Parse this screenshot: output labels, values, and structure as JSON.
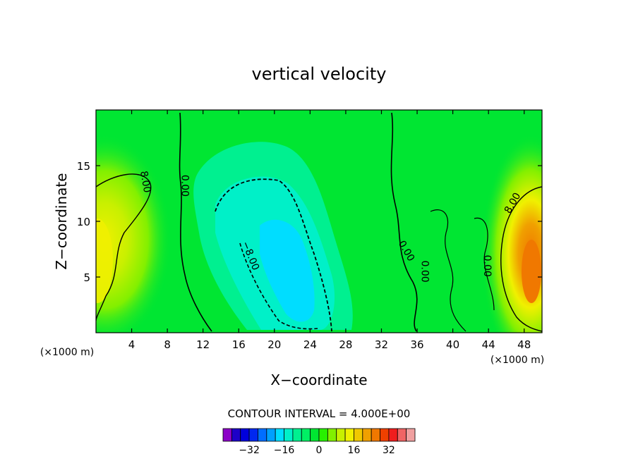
{
  "chart_data": {
    "type": "heatmap",
    "title": "vertical velocity",
    "xlabel": "X−coordinate",
    "ylabel": "Z−coordinate",
    "x_unit_left": "(×1000 m)",
    "x_unit_right": "(×1000 m)",
    "xlim": [
      0,
      50
    ],
    "ylim": [
      0,
      20
    ],
    "x_ticks": [
      4,
      8,
      12,
      16,
      20,
      24,
      28,
      32,
      36,
      40,
      44,
      48
    ],
    "x_tick_labels": [
      "4",
      "8",
      "12",
      "16",
      "20",
      "24",
      "28",
      "32",
      "36",
      "40",
      "44",
      "48"
    ],
    "y_ticks": [
      5,
      10,
      15
    ],
    "y_tick_labels": [
      "5",
      "10",
      "15"
    ],
    "contour_labels": [
      {
        "text": "8.00",
        "x": 5.2,
        "z": 13.5,
        "angle": 80
      },
      {
        "text": "0.00",
        "x": 9.6,
        "z": 13.2,
        "angle": 90
      },
      {
        "text": "−8.00",
        "x": 17.0,
        "z": 6.8,
        "angle": 68
      },
      {
        "text": "0.00",
        "x": 34.5,
        "z": 7.2,
        "angle": 60
      },
      {
        "text": "0.00",
        "x": 36.5,
        "z": 5.5,
        "angle": 90
      },
      {
        "text": "0.00",
        "x": 43.5,
        "z": 6.0,
        "angle": 90
      },
      {
        "text": "8.00",
        "x": 47.0,
        "z": 11.5,
        "angle": -60
      }
    ],
    "contour_interval_label": "CONTOUR INTERVAL = 4.000E+00",
    "colorbar": {
      "levels": [
        -40,
        -36,
        -32,
        -28,
        -24,
        -20,
        -16,
        -12,
        -8,
        -4,
        0,
        4,
        8,
        12,
        16,
        20,
        24,
        28,
        32,
        36,
        40
      ],
      "colors": [
        "#8c00c8",
        "#1e00c8",
        "#0000dc",
        "#0028f0",
        "#006eff",
        "#00a0ff",
        "#00ddff",
        "#00f0c8",
        "#00f090",
        "#00f064",
        "#00e632",
        "#28f000",
        "#82f000",
        "#c8f000",
        "#f0f000",
        "#f0c800",
        "#f0a000",
        "#f07800",
        "#f04000",
        "#f01e1e",
        "#f06464",
        "#f0a0a0"
      ],
      "tick_values": [
        -32,
        -16,
        0,
        16,
        32
      ],
      "tick_labels": [
        "−32",
        "−16",
        "0",
        "16",
        "32"
      ]
    },
    "regions": {
      "background": {
        "value": 0,
        "color": "#00e632"
      },
      "left_updraft": {
        "x": 2.0,
        "z": 8.5,
        "peak": 14
      },
      "central_downdraft": {
        "x": 20.5,
        "z": 7.5,
        "peak": -16
      },
      "right_updraft": {
        "x": 48.5,
        "z": 6.5,
        "peak": 30
      }
    }
  }
}
